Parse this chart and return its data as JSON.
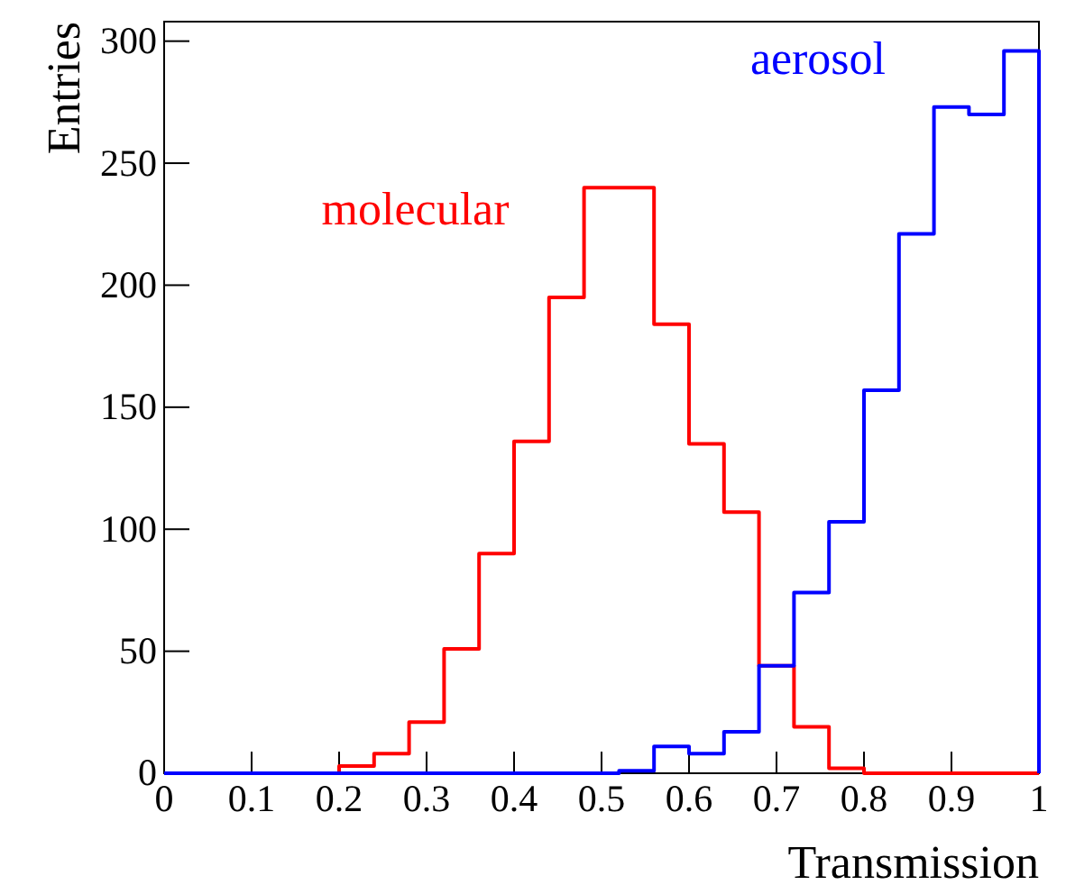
{
  "chart_data": {
    "type": "histogram",
    "xlabel": "Transmission",
    "ylabel": "Entries",
    "bins": [
      0,
      0.04,
      0.08,
      0.12,
      0.16,
      0.2,
      0.24,
      0.28,
      0.32,
      0.36,
      0.4,
      0.44,
      0.48,
      0.52,
      0.56,
      0.6,
      0.64,
      0.68,
      0.72,
      0.76,
      0.8,
      0.84,
      0.88,
      0.92,
      0.96,
      1
    ],
    "series": [
      {
        "name": "molecular",
        "color": "#ff0000",
        "values": [
          0,
          0,
          0,
          0,
          0,
          3,
          8,
          21,
          51,
          90,
          136,
          195,
          240,
          240,
          184,
          135,
          107,
          44,
          19,
          2,
          0,
          0,
          0,
          0,
          0
        ]
      },
      {
        "name": "aerosol",
        "color": "#0000ff",
        "values": [
          0,
          0,
          0,
          0,
          0,
          0,
          0,
          0,
          0,
          0,
          0,
          0,
          0,
          1,
          11,
          8,
          17,
          44,
          74,
          103,
          157,
          221,
          273,
          270,
          296
        ]
      }
    ],
    "xlim": [
      0,
      1
    ],
    "ylim": [
      0,
      308
    ],
    "xticks": [
      0,
      0.1,
      0.2,
      0.3,
      0.4,
      0.5,
      0.6,
      0.7,
      0.8,
      0.9,
      1
    ],
    "yticks": [
      0,
      50,
      100,
      150,
      200,
      250,
      300
    ],
    "grid": false,
    "legend": false
  }
}
